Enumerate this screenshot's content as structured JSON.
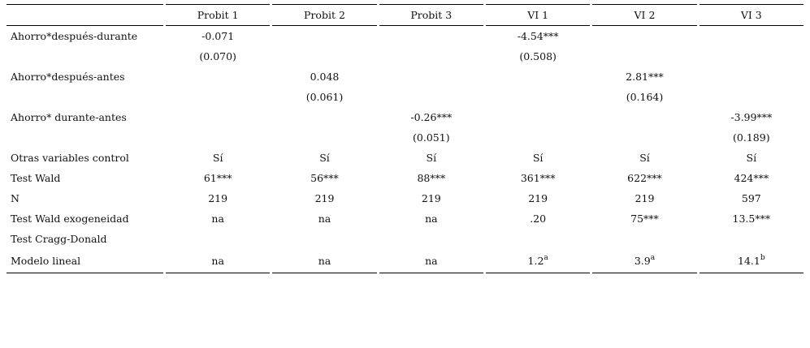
{
  "table": {
    "columns": [
      "",
      "Probit 1",
      "Probit 2",
      "Probit 3",
      "VI 1",
      "VI 2",
      "VI 3"
    ],
    "rows": [
      {
        "label": "Ahorro*después-durante",
        "cells": [
          "-0.071",
          "",
          "",
          "-4.54***",
          "",
          ""
        ]
      },
      {
        "label": "",
        "cells": [
          "(0.070)",
          "",
          "",
          "(0.508)",
          "",
          ""
        ]
      },
      {
        "label": "Ahorro*después-antes",
        "cells": [
          "",
          "0.048",
          "",
          "",
          "2.81***",
          ""
        ]
      },
      {
        "label": "",
        "cells": [
          "",
          "(0.061)",
          "",
          "",
          "(0.164)",
          ""
        ]
      },
      {
        "label": "Ahorro* durante-antes",
        "cells": [
          "",
          "",
          "-0.26***",
          "",
          "",
          "-3.99***"
        ]
      },
      {
        "label": "",
        "cells": [
          "",
          "",
          "(0.051)",
          "",
          "",
          "(0.189)"
        ]
      },
      {
        "label": "Otras variables control",
        "cells": [
          "Sí",
          "Sí",
          "Sí",
          "Sí",
          "Sí",
          "Sí"
        ]
      },
      {
        "label": "Test Wald",
        "cells": [
          "61***",
          "56***",
          "88***",
          "361***",
          "622***",
          "424***"
        ]
      },
      {
        "label": "N",
        "cells": [
          "219",
          "219",
          "219",
          "219",
          "219",
          "597"
        ]
      },
      {
        "label": "Test Wald exogeneidad",
        "cells": [
          "na",
          "na",
          "na",
          ".20",
          "75***",
          "13.5***"
        ]
      },
      {
        "label": "Test Cragg-Donald",
        "cells": [
          "",
          "",
          "",
          "",
          "",
          ""
        ]
      }
    ],
    "last_row": {
      "label": "Modelo lineal",
      "cells": [
        {
          "value": "na",
          "sup": ""
        },
        {
          "value": "na",
          "sup": ""
        },
        {
          "value": "na",
          "sup": ""
        },
        {
          "value": "1.2",
          "sup": "a"
        },
        {
          "value": "3.9",
          "sup": "a"
        },
        {
          "value": "14.1",
          "sup": "b"
        }
      ]
    }
  }
}
